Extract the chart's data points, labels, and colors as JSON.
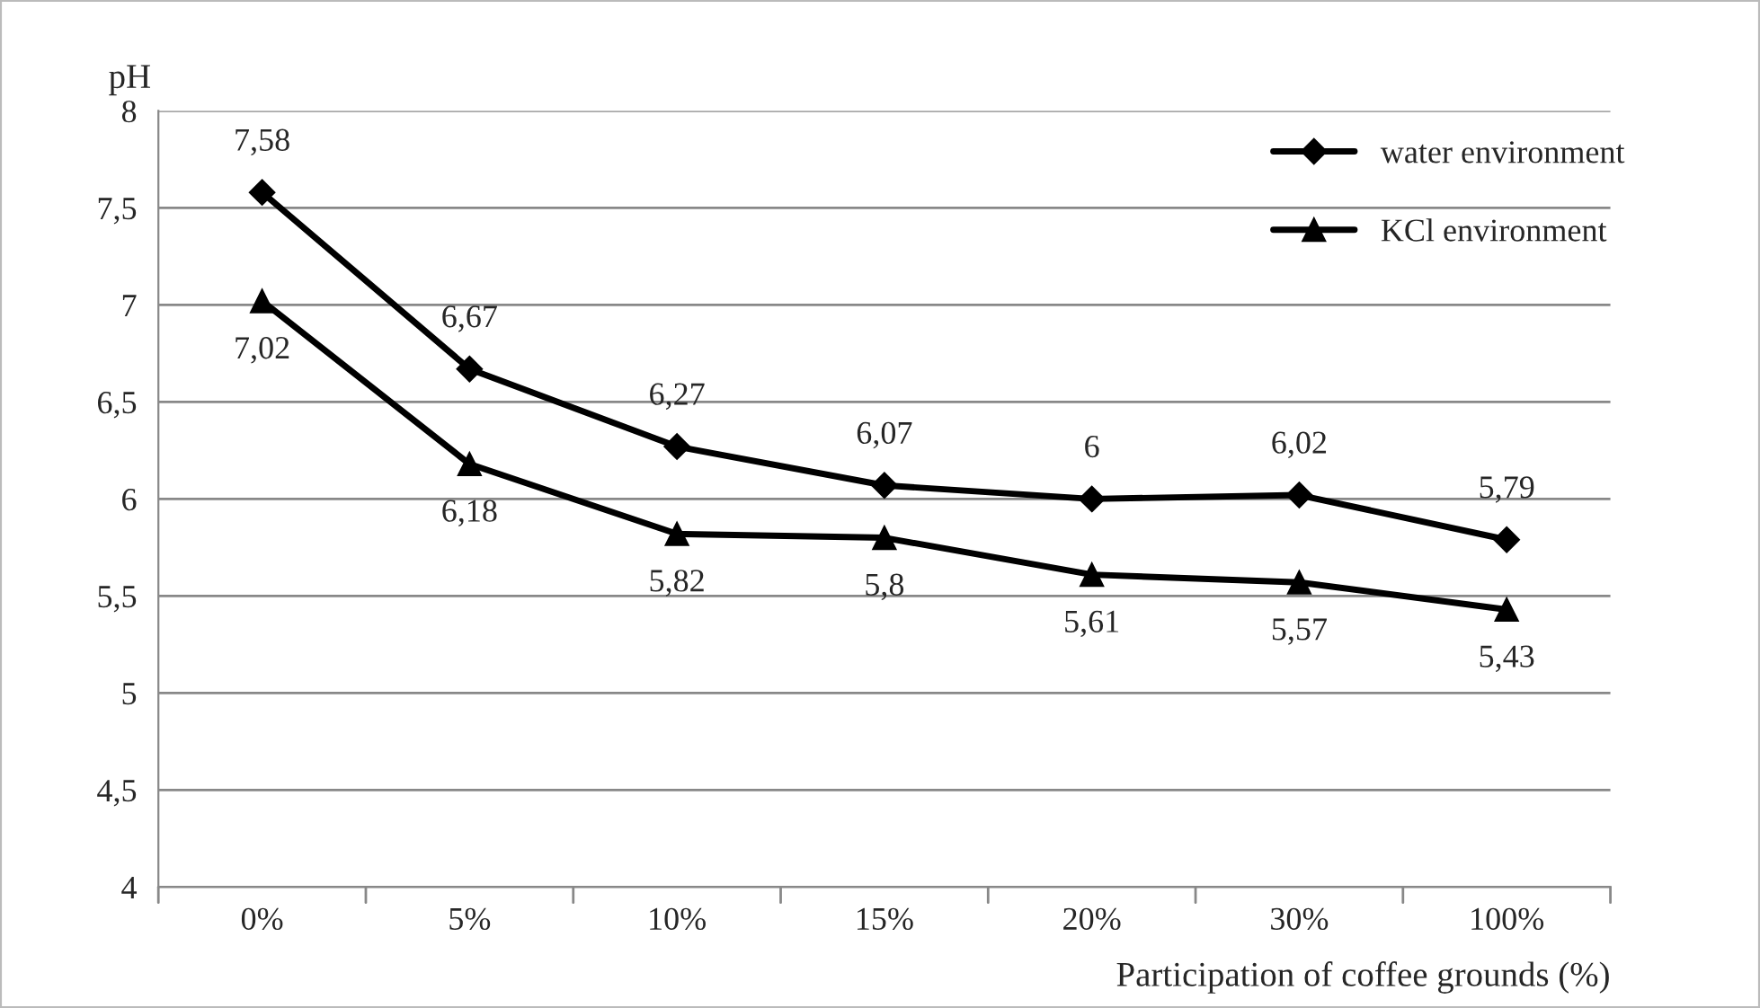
{
  "chart_data": {
    "type": "line",
    "xlabel": "Participation of coffee grounds (%)",
    "ylabel": "pH",
    "categories": [
      "0%",
      "5%",
      "10%",
      "15%",
      "20%",
      "30%",
      "100%"
    ],
    "series": [
      {
        "name": "water environment",
        "color": "#000000",
        "marker": "diamond",
        "values": [
          7.58,
          6.67,
          6.27,
          6.07,
          6.0,
          6.02,
          5.79
        ],
        "value_labels": [
          "7,58",
          "6,67",
          "6,27",
          "6,07",
          "6",
          "6,02",
          "5,79"
        ]
      },
      {
        "name": "KCl environment",
        "color": "#000000",
        "marker": "triangle",
        "values": [
          7.02,
          6.18,
          5.82,
          5.8,
          5.61,
          5.57,
          5.43
        ],
        "value_labels": [
          "7,02",
          "6,18",
          "5,82",
          "5,8",
          "5,61",
          "5,57",
          "5,43"
        ]
      }
    ],
    "ylim": [
      4,
      8
    ],
    "yticks": [
      4,
      {
        "value": 4.5,
        "label": "4,5"
      },
      5,
      {
        "value": 5.5,
        "label": "5,5"
      },
      6,
      {
        "value": 6.5,
        "label": "6,5"
      },
      7,
      {
        "value": 7.5,
        "label": "7,5"
      },
      8
    ],
    "grid": "y",
    "legend": "top right",
    "line_style": "solid"
  }
}
